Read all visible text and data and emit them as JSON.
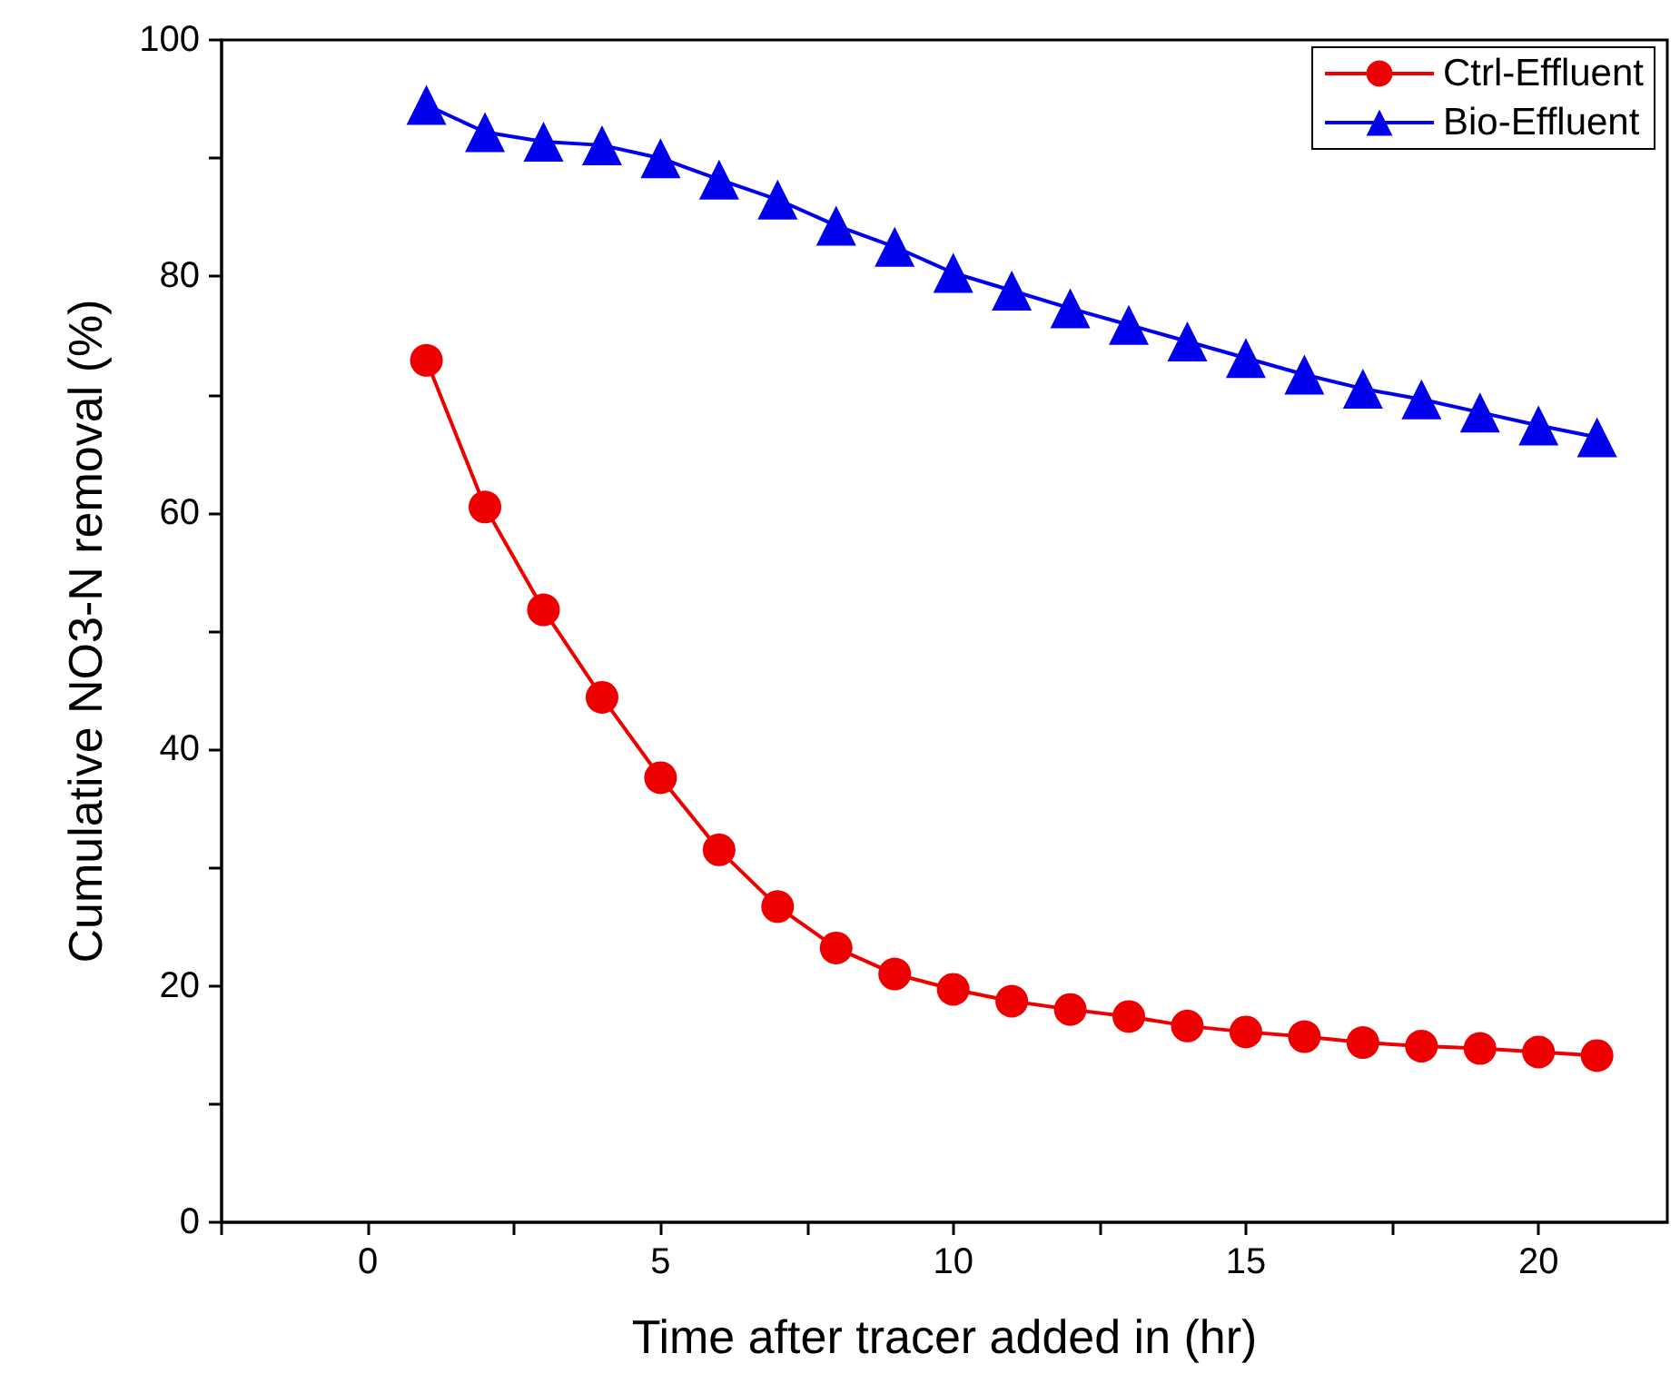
{
  "chart_data": {
    "type": "line",
    "xlabel": "Time after tracer added in (hr)",
    "ylabel": "Cumulative NO3-N removal (%)",
    "x": [
      1,
      2,
      3,
      4,
      5,
      6,
      7,
      8,
      9,
      10,
      11,
      12,
      13,
      14,
      15,
      16,
      17,
      18,
      19,
      20,
      21
    ],
    "series": [
      {
        "name": "Ctrl-Effluent",
        "color": "#ee0000",
        "marker": "circle",
        "values": [
          72.9,
          60.5,
          51.8,
          44.4,
          37.6,
          31.5,
          26.7,
          23.2,
          21.0,
          19.7,
          18.7,
          18.0,
          17.4,
          16.6,
          16.1,
          15.7,
          15.2,
          14.9,
          14.7,
          14.4,
          14.1
        ]
      },
      {
        "name": "Bio-Effluent",
        "color": "#0000ee",
        "marker": "triangle",
        "values": [
          94.5,
          92.2,
          91.4,
          91.1,
          90.0,
          88.2,
          86.5,
          84.3,
          82.5,
          80.3,
          78.8,
          77.3,
          75.9,
          74.5,
          73.1,
          71.7,
          70.5,
          69.6,
          68.5,
          67.4,
          66.4
        ]
      }
    ],
    "xlim": [
      -2.5,
      22.2
    ],
    "xticks": [
      {
        "value": -2.5,
        "label": null
      },
      0,
      {
        "value": 2.5,
        "label": null
      },
      5,
      {
        "value": 7.5,
        "label": null
      },
      10,
      {
        "value": 12.5,
        "label": null
      },
      15,
      {
        "value": 17.5,
        "label": null
      },
      20
    ],
    "ylim": [
      0,
      100
    ],
    "yticks": [
      0,
      {
        "value": 10,
        "label": null
      },
      20,
      {
        "value": 30,
        "label": null
      },
      40,
      {
        "value": 50,
        "label": null
      },
      60,
      {
        "value": 70,
        "label": null
      },
      80,
      {
        "value": 90,
        "label": null
      },
      100
    ],
    "grid": false,
    "legend": "top right",
    "line_style": "solid"
  }
}
